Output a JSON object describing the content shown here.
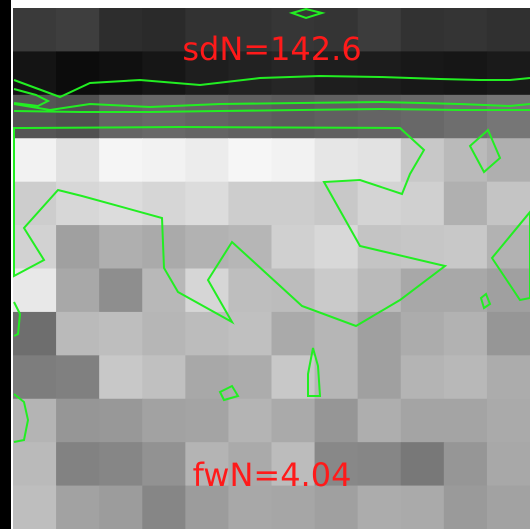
{
  "top_label": "sdN=142.6",
  "bottom_label": "fwN=4.04",
  "colors": {
    "label": "#ff1a1a",
    "contour": "#22ee22",
    "frame": "#000000",
    "background": "#ffffff"
  },
  "pixel_grid": [
    [
      58,
      62,
      45,
      42,
      50,
      50,
      54,
      52,
      60,
      50,
      52,
      48
    ],
    [
      20,
      12,
      16,
      22,
      30,
      34,
      38,
      30,
      28,
      24,
      22,
      26
    ],
    [
      85,
      80,
      100,
      104,
      100,
      96,
      92,
      96,
      100,
      104,
      110,
      118
    ],
    [
      242,
      225,
      245,
      242,
      236,
      246,
      242,
      230,
      226,
      200,
      186,
      175
    ],
    [
      205,
      215,
      220,
      214,
      220,
      205,
      205,
      200,
      212,
      208,
      176,
      196
    ],
    [
      210,
      160,
      175,
      170,
      178,
      182,
      208,
      216,
      196,
      198,
      200,
      178
    ],
    [
      232,
      168,
      142,
      184,
      214,
      190,
      188,
      202,
      186,
      168,
      168,
      160
    ],
    [
      110,
      186,
      190,
      182,
      188,
      192,
      170,
      182,
      160,
      172,
      178,
      150
    ],
    [
      125,
      128,
      200,
      192,
      168,
      172,
      200,
      182,
      160,
      180,
      184,
      172
    ],
    [
      180,
      150,
      152,
      162,
      164,
      180,
      170,
      150,
      174,
      164,
      164,
      170
    ],
    [
      186,
      130,
      134,
      146,
      180,
      170,
      188,
      136,
      134,
      120,
      150,
      168
    ],
    [
      190,
      162,
      156,
      134,
      156,
      168,
      166,
      160,
      172,
      170,
      154,
      162
    ]
  ]
}
